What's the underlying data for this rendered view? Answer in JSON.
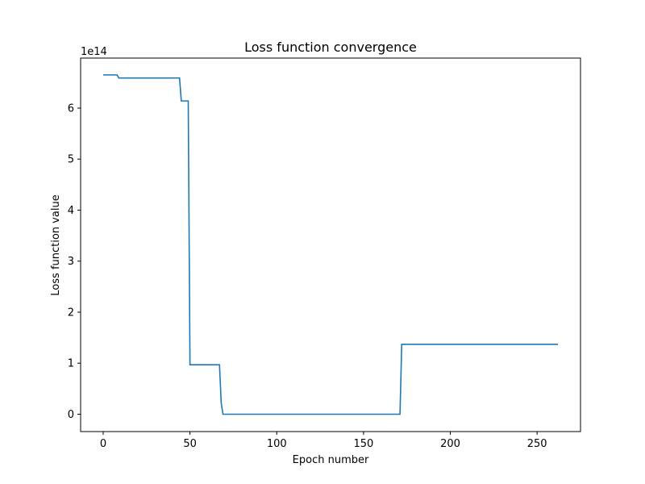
{
  "chart_data": {
    "type": "line",
    "title": "Loss function convergence",
    "xlabel": "Epoch number",
    "ylabel": "Loss function value",
    "y_offset_label": "1e14",
    "xlim": [
      -13,
      275
    ],
    "ylim": [
      -0.34,
      6.98
    ],
    "y_scale": 100000000000000.0,
    "x_ticks": [
      0,
      50,
      100,
      150,
      200,
      250
    ],
    "x_tick_labels": [
      "0",
      "50",
      "100",
      "150",
      "200",
      "250"
    ],
    "y_ticks": [
      0,
      1,
      2,
      3,
      4,
      5,
      6
    ],
    "y_tick_labels": [
      "0",
      "1",
      "2",
      "3",
      "4",
      "5",
      "6"
    ],
    "grid": false,
    "series": [
      {
        "color": "#1f77b4",
        "x": [
          0,
          8,
          9,
          44,
          45,
          49,
          50,
          67,
          68,
          69,
          170,
          171,
          172,
          262
        ],
        "y": [
          6.65,
          6.65,
          6.59,
          6.59,
          6.14,
          6.14,
          0.97,
          0.97,
          0.22,
          0.0,
          0.0,
          0.0,
          1.37,
          1.37
        ]
      }
    ]
  }
}
